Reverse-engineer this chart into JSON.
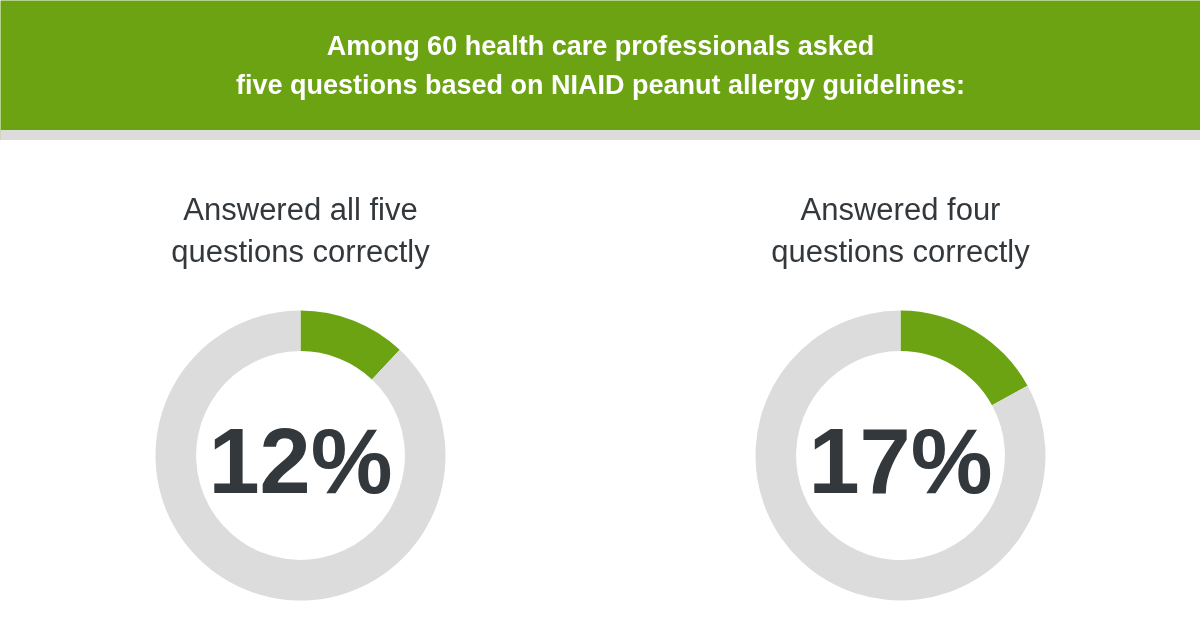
{
  "chart_data": [
    {
      "type": "other",
      "title": "Among 60 health care professionals asked\nfive questions based on NIAID peanut allergy guidelines:"
    },
    {
      "type": "donut",
      "title": "Answered all five\nquestions correctly",
      "categories": [
        null,
        null
      ],
      "values": [
        12,
        88
      ],
      "colors": [
        "#6ba313",
        "#dcdcdc"
      ],
      "annotations": [
        "12%"
      ]
    },
    {
      "type": "donut",
      "title": "Answered four\nquestions correctly",
      "categories": [
        null,
        null
      ],
      "values": [
        17,
        83
      ],
      "colors": [
        "#6ba313",
        "#dcdcdc"
      ],
      "annotations": [
        "17%"
      ]
    }
  ]
}
